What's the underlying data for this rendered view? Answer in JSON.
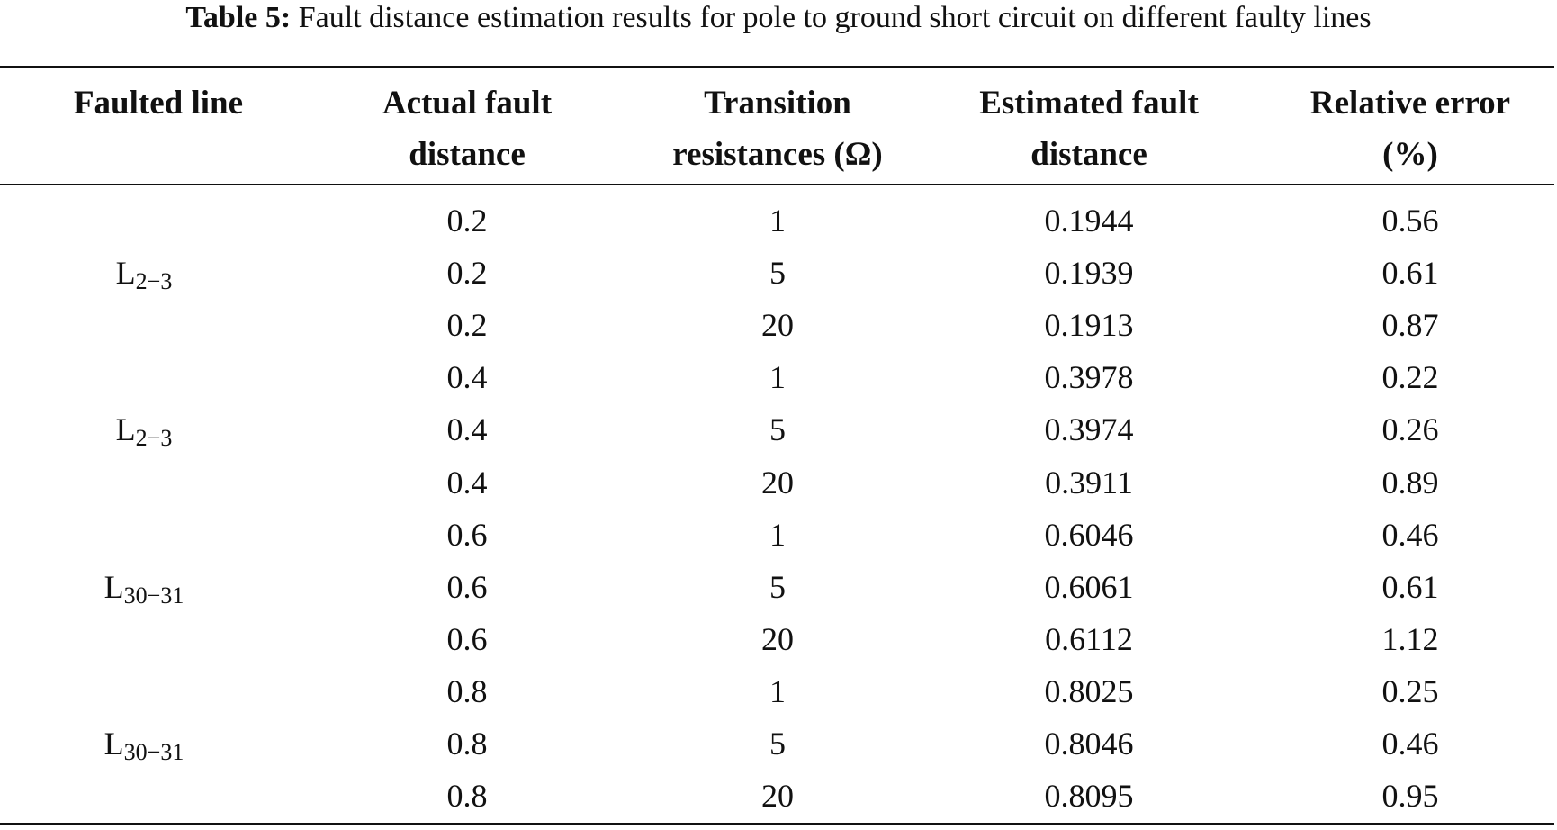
{
  "caption": {
    "label": "Table 5:",
    "text": "Fault distance estimation results for pole to ground short circuit on different faulty lines"
  },
  "table": {
    "headers": [
      [
        "Faulted line",
        ""
      ],
      [
        "Actual fault",
        "distance"
      ],
      [
        "Transition",
        "resistances (Ω)"
      ],
      [
        "Estimated fault",
        "distance"
      ],
      [
        "Relative error",
        "(%)"
      ]
    ],
    "groups": [
      {
        "line": "L",
        "sub": "2−3"
      },
      {
        "line": "L",
        "sub": "2−3"
      },
      {
        "line": "L",
        "sub": "30−31"
      },
      {
        "line": "L",
        "sub": "30−31"
      }
    ],
    "rows": [
      [
        "0.2",
        "1",
        "0.1944",
        "0.56"
      ],
      [
        "0.2",
        "5",
        "0.1939",
        "0.61"
      ],
      [
        "0.2",
        "20",
        "0.1913",
        "0.87"
      ],
      [
        "0.4",
        "1",
        "0.3978",
        "0.22"
      ],
      [
        "0.4",
        "5",
        "0.3974",
        "0.26"
      ],
      [
        "0.4",
        "20",
        "0.3911",
        "0.89"
      ],
      [
        "0.6",
        "1",
        "0.6046",
        "0.46"
      ],
      [
        "0.6",
        "5",
        "0.6061",
        "0.61"
      ],
      [
        "0.6",
        "20",
        "0.6112",
        "1.12"
      ],
      [
        "0.8",
        "1",
        "0.8025",
        "0.25"
      ],
      [
        "0.8",
        "5",
        "0.8046",
        "0.46"
      ],
      [
        "0.8",
        "20",
        "0.8095",
        "0.95"
      ]
    ]
  }
}
